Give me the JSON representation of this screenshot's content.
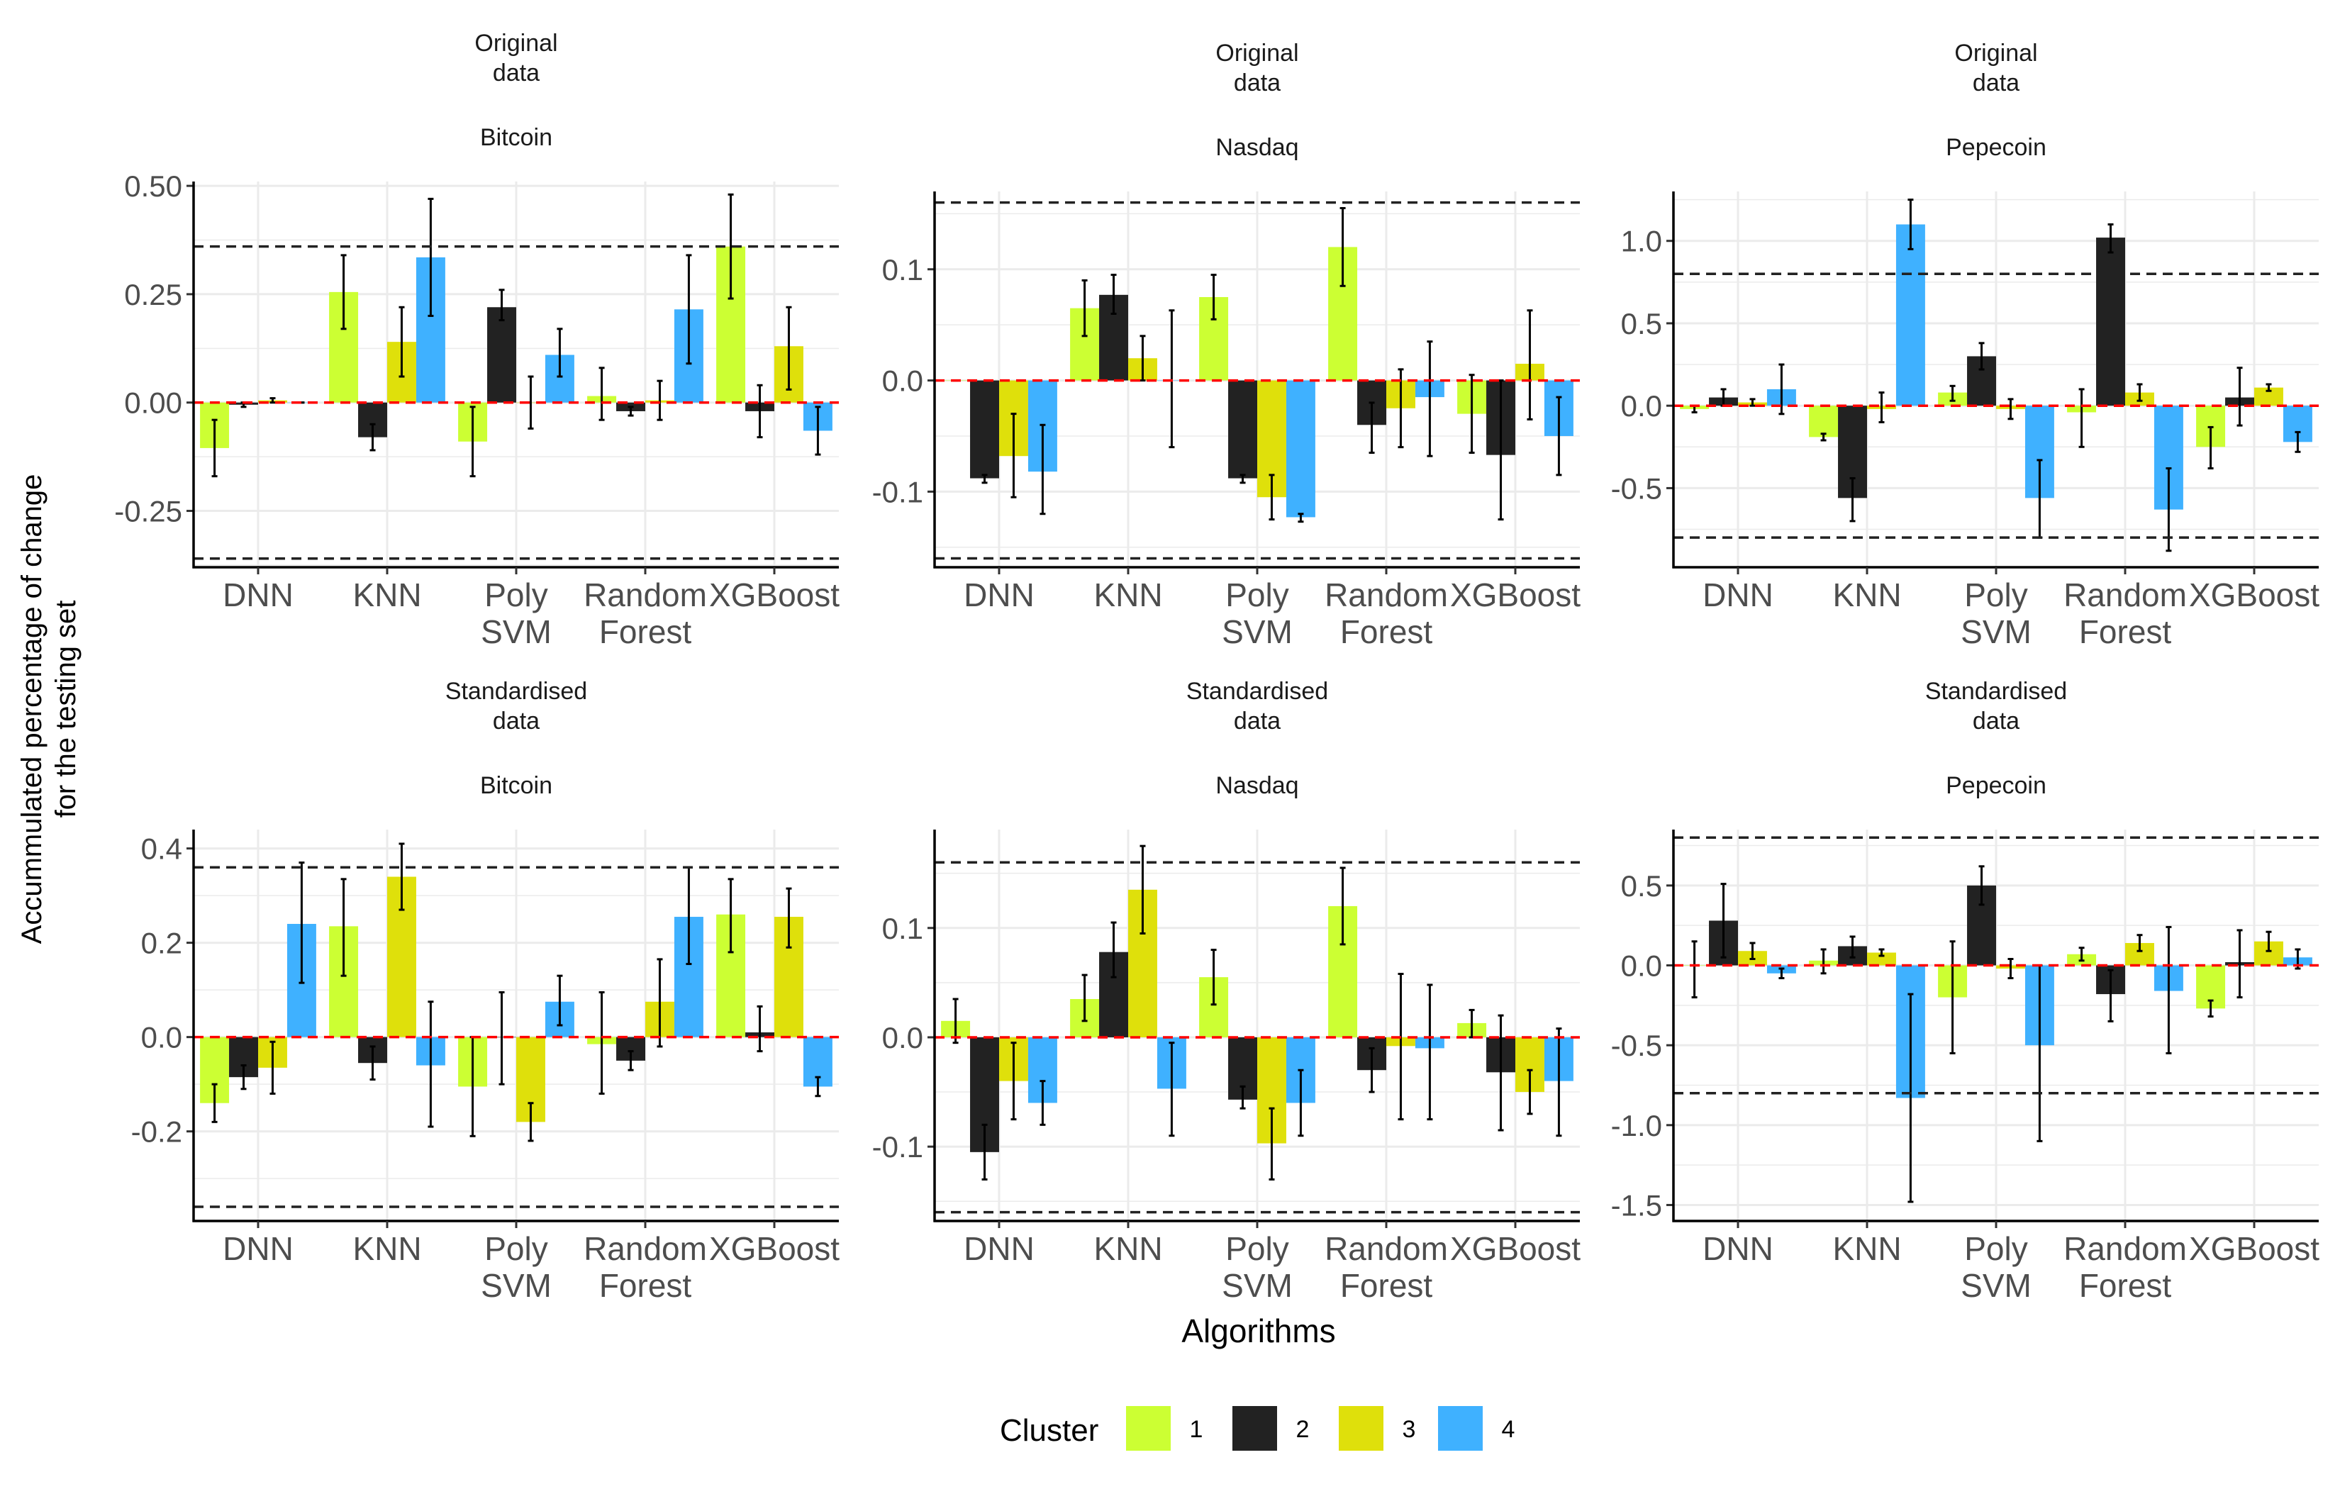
{
  "figure": {
    "ylabel_line1": "Accummulated percentage of change",
    "ylabel_line2": "for the testing set",
    "xlabel": "Algorithms",
    "legend_title": "Cluster"
  },
  "colors": {
    "cluster_1": "#CCFF33",
    "cluster_2": "#222222",
    "cluster_3": "#DFE00B",
    "cluster_4": "#3FB1FF",
    "zero_line": "#FF0000",
    "threshold_line": "#222222",
    "grid": "#EBEBEB"
  },
  "legend": [
    {
      "label": "1",
      "color": "#CCFF33"
    },
    {
      "label": "2",
      "color": "#222222"
    },
    {
      "label": "3",
      "color": "#DFE00B"
    },
    {
      "label": "4",
      "color": "#3FB1FF"
    }
  ],
  "chart_data": [
    {
      "type": "bar",
      "title_line1": "Original",
      "title_line2": "data",
      "subtitle": "Bitcoin",
      "categories": [
        [
          "DNN"
        ],
        [
          "KNN"
        ],
        [
          "Poly",
          "SVM"
        ],
        [
          "Random",
          "Forest"
        ],
        [
          "XGBoost"
        ]
      ],
      "ylim": [
        -0.38,
        0.51
      ],
      "yticks": [
        0.5,
        0.25,
        0.0,
        -0.25
      ],
      "ytick_labels": [
        "0.50",
        "0.25",
        "0.00",
        "-0.25"
      ],
      "thresholds": [
        0.36,
        -0.36
      ],
      "series": [
        {
          "name": "1",
          "values": [
            -0.105,
            0.255,
            -0.09,
            0.015,
            0.36
          ],
          "err": [
            [
              -0.17,
              -0.04
            ],
            [
              0.17,
              0.34
            ],
            [
              -0.17,
              -0.01
            ],
            [
              -0.04,
              0.08
            ],
            [
              0.24,
              0.48
            ]
          ]
        },
        {
          "name": "2",
          "values": [
            -0.005,
            -0.08,
            0.22,
            -0.02,
            -0.02
          ],
          "err": [
            [
              -0.01,
              0.0
            ],
            [
              -0.11,
              -0.05
            ],
            [
              0.19,
              0.26
            ],
            [
              -0.03,
              -0.01
            ],
            [
              -0.08,
              0.04
            ]
          ]
        },
        {
          "name": "3",
          "values": [
            0.005,
            0.14,
            0.0,
            0.005,
            0.13
          ],
          "err": [
            [
              0.0,
              0.01
            ],
            [
              0.06,
              0.22
            ],
            [
              -0.06,
              0.06
            ],
            [
              -0.04,
              0.05
            ],
            [
              0.03,
              0.22
            ]
          ]
        },
        {
          "name": "4",
          "values": [
            0.0,
            0.335,
            0.11,
            0.215,
            -0.065
          ],
          "err": [
            [
              0.0,
              0.0
            ],
            [
              0.2,
              0.47
            ],
            [
              0.06,
              0.17
            ],
            [
              0.09,
              0.34
            ],
            [
              -0.12,
              -0.01
            ]
          ]
        }
      ]
    },
    {
      "type": "bar",
      "title_line1": "Original",
      "title_line2": "data",
      "subtitle": "Nasdaq",
      "categories": [
        [
          "DNN"
        ],
        [
          "KNN"
        ],
        [
          "Poly",
          "SVM"
        ],
        [
          "Random",
          "Forest"
        ],
        [
          "XGBoost"
        ]
      ],
      "ylim": [
        -0.168,
        0.17
      ],
      "yticks": [
        0.1,
        0.0,
        -0.1
      ],
      "ytick_labels": [
        "0.1",
        "0.0",
        "-0.1"
      ],
      "thresholds": [
        0.16,
        -0.16
      ],
      "series": [
        {
          "name": "1",
          "values": [
            0.0,
            0.065,
            0.075,
            0.12,
            -0.03
          ],
          "err": [
            [
              0.0,
              0.0
            ],
            [
              0.04,
              0.09
            ],
            [
              0.055,
              0.095
            ],
            [
              0.085,
              0.155
            ],
            [
              -0.065,
              0.005
            ]
          ]
        },
        {
          "name": "2",
          "values": [
            -0.088,
            0.077,
            -0.088,
            -0.04,
            -0.067
          ],
          "err": [
            [
              -0.092,
              -0.085
            ],
            [
              0.06,
              0.095
            ],
            [
              -0.092,
              -0.085
            ],
            [
              -0.065,
              -0.02
            ],
            [
              -0.125,
              0.0
            ]
          ]
        },
        {
          "name": "3",
          "values": [
            -0.068,
            0.02,
            -0.105,
            -0.025,
            0.015
          ],
          "err": [
            [
              -0.105,
              -0.03
            ],
            [
              0.0,
              0.04
            ],
            [
              -0.125,
              -0.085
            ],
            [
              -0.06,
              0.01
            ],
            [
              -0.035,
              0.063
            ]
          ]
        },
        {
          "name": "4",
          "values": [
            -0.082,
            0.0,
            -0.123,
            -0.015,
            -0.05
          ],
          "err": [
            [
              -0.12,
              -0.04
            ],
            [
              -0.06,
              0.063
            ],
            [
              -0.127,
              -0.12
            ],
            [
              -0.068,
              0.035
            ],
            [
              -0.085,
              -0.015
            ]
          ]
        }
      ]
    },
    {
      "type": "bar",
      "title_line1": "Original",
      "title_line2": "data",
      "subtitle": "Pepecoin",
      "categories": [
        [
          "DNN"
        ],
        [
          "KNN"
        ],
        [
          "Poly",
          "SVM"
        ],
        [
          "Random",
          "Forest"
        ],
        [
          "XGBoost"
        ]
      ],
      "ylim": [
        -0.98,
        1.3
      ],
      "yticks": [
        1.0,
        0.5,
        0.0,
        -0.5
      ],
      "ytick_labels": [
        "1.0",
        "0.5",
        "0.0",
        "-0.5"
      ],
      "thresholds": [
        0.8,
        -0.8
      ],
      "series": [
        {
          "name": "1",
          "values": [
            -0.02,
            -0.19,
            0.08,
            -0.04,
            -0.25
          ],
          "err": [
            [
              -0.04,
              0.0
            ],
            [
              -0.21,
              -0.17
            ],
            [
              0.03,
              0.12
            ],
            [
              -0.25,
              0.1
            ],
            [
              -0.38,
              -0.13
            ]
          ]
        },
        {
          "name": "2",
          "values": [
            0.05,
            -0.56,
            0.3,
            1.02,
            0.05
          ],
          "err": [
            [
              0.0,
              0.1
            ],
            [
              -0.7,
              -0.44
            ],
            [
              0.22,
              0.38
            ],
            [
              0.93,
              1.1
            ],
            [
              -0.12,
              0.23
            ]
          ]
        },
        {
          "name": "3",
          "values": [
            0.02,
            -0.02,
            -0.02,
            0.08,
            0.11
          ],
          "err": [
            [
              0.0,
              0.04
            ],
            [
              -0.1,
              0.08
            ],
            [
              -0.08,
              0.04
            ],
            [
              0.03,
              0.13
            ],
            [
              0.09,
              0.13
            ]
          ]
        },
        {
          "name": "4",
          "values": [
            0.1,
            1.1,
            -0.56,
            -0.63,
            -0.22
          ],
          "err": [
            [
              -0.05,
              0.25
            ],
            [
              0.95,
              1.25
            ],
            [
              -0.8,
              -0.33
            ],
            [
              -0.88,
              -0.38
            ],
            [
              -0.28,
              -0.16
            ]
          ]
        }
      ]
    },
    {
      "type": "bar",
      "title_line1": "Standardised",
      "title_line2": "data",
      "subtitle": "Bitcoin",
      "categories": [
        [
          "DNN"
        ],
        [
          "KNN"
        ],
        [
          "Poly",
          "SVM"
        ],
        [
          "Random",
          "Forest"
        ],
        [
          "XGBoost"
        ]
      ],
      "ylim": [
        -0.39,
        0.44
      ],
      "yticks": [
        0.4,
        0.2,
        0.0,
        -0.2
      ],
      "ytick_labels": [
        "0.4",
        "0.2",
        "0.0",
        "-0.2"
      ],
      "thresholds": [
        0.36,
        -0.36
      ],
      "series": [
        {
          "name": "1",
          "values": [
            -0.14,
            0.235,
            -0.105,
            -0.015,
            0.26
          ],
          "err": [
            [
              -0.18,
              -0.1
            ],
            [
              0.13,
              0.335
            ],
            [
              -0.21,
              0.0
            ],
            [
              -0.12,
              0.095
            ],
            [
              0.18,
              0.335
            ]
          ]
        },
        {
          "name": "2",
          "values": [
            -0.085,
            -0.055,
            0.0,
            -0.05,
            0.01
          ],
          "err": [
            [
              -0.11,
              -0.06
            ],
            [
              -0.09,
              -0.02
            ],
            [
              -0.1,
              0.095
            ],
            [
              -0.07,
              -0.03
            ],
            [
              -0.03,
              0.065
            ]
          ]
        },
        {
          "name": "3",
          "values": [
            -0.065,
            0.34,
            -0.18,
            0.075,
            0.255
          ],
          "err": [
            [
              -0.12,
              -0.01
            ],
            [
              0.27,
              0.41
            ],
            [
              -0.22,
              -0.14
            ],
            [
              -0.02,
              0.165
            ],
            [
              0.19,
              0.315
            ]
          ]
        },
        {
          "name": "4",
          "values": [
            0.24,
            -0.06,
            0.075,
            0.255,
            -0.105
          ],
          "err": [
            [
              0.115,
              0.37
            ],
            [
              -0.19,
              0.075
            ],
            [
              0.025,
              0.13
            ],
            [
              0.155,
              0.36
            ],
            [
              -0.125,
              -0.085
            ]
          ]
        }
      ]
    },
    {
      "type": "bar",
      "title_line1": "Standardised",
      "title_line2": "data",
      "subtitle": "Nasdaq",
      "categories": [
        [
          "DNN"
        ],
        [
          "KNN"
        ],
        [
          "Poly",
          "SVM"
        ],
        [
          "Random",
          "Forest"
        ],
        [
          "XGBoost"
        ]
      ],
      "ylim": [
        -0.168,
        0.19
      ],
      "yticks": [
        0.1,
        0.0,
        -0.1
      ],
      "ytick_labels": [
        "0.1",
        "0.0",
        "-0.1"
      ],
      "thresholds": [
        0.16,
        -0.16
      ],
      "series": [
        {
          "name": "1",
          "values": [
            0.015,
            0.035,
            0.055,
            0.12,
            0.013
          ],
          "err": [
            [
              -0.005,
              0.035
            ],
            [
              0.015,
              0.057
            ],
            [
              0.03,
              0.08
            ],
            [
              0.085,
              0.155
            ],
            [
              0.0,
              0.025
            ]
          ]
        },
        {
          "name": "2",
          "values": [
            -0.105,
            0.078,
            -0.057,
            -0.03,
            -0.032
          ],
          "err": [
            [
              -0.13,
              -0.08
            ],
            [
              0.055,
              0.105
            ],
            [
              -0.065,
              -0.045
            ],
            [
              -0.05,
              -0.01
            ],
            [
              -0.085,
              0.02
            ]
          ]
        },
        {
          "name": "3",
          "values": [
            -0.04,
            0.135,
            -0.097,
            -0.008,
            -0.05
          ],
          "err": [
            [
              -0.075,
              -0.005
            ],
            [
              0.095,
              0.175
            ],
            [
              -0.13,
              -0.065
            ],
            [
              -0.075,
              0.058
            ],
            [
              -0.07,
              -0.03
            ]
          ]
        },
        {
          "name": "4",
          "values": [
            -0.06,
            -0.047,
            -0.06,
            -0.01,
            -0.04
          ],
          "err": [
            [
              -0.08,
              -0.04
            ],
            [
              -0.09,
              -0.005
            ],
            [
              -0.09,
              -0.03
            ],
            [
              -0.075,
              0.048
            ],
            [
              -0.09,
              0.008
            ]
          ]
        }
      ]
    },
    {
      "type": "bar",
      "title_line1": "Standardised",
      "title_line2": "data",
      "subtitle": "Pepecoin",
      "categories": [
        [
          "DNN"
        ],
        [
          "KNN"
        ],
        [
          "Poly",
          "SVM"
        ],
        [
          "Random",
          "Forest"
        ],
        [
          "XGBoost"
        ]
      ],
      "ylim": [
        -1.6,
        0.85
      ],
      "yticks": [
        0.5,
        0.0,
        -0.5,
        -1.0,
        -1.5
      ],
      "ytick_labels": [
        "0.5",
        "0.0",
        "-0.5",
        "-1.0",
        "-1.5"
      ],
      "thresholds": [
        0.8,
        -0.8
      ],
      "series": [
        {
          "name": "1",
          "values": [
            0.0,
            0.03,
            -0.2,
            0.07,
            -0.27
          ],
          "err": [
            [
              -0.2,
              0.15
            ],
            [
              -0.05,
              0.1
            ],
            [
              -0.55,
              0.15
            ],
            [
              0.03,
              0.11
            ],
            [
              -0.32,
              -0.22
            ]
          ]
        },
        {
          "name": "2",
          "values": [
            0.28,
            0.12,
            0.5,
            -0.18,
            0.02
          ],
          "err": [
            [
              0.05,
              0.51
            ],
            [
              0.05,
              0.18
            ],
            [
              0.38,
              0.62
            ],
            [
              -0.35,
              -0.03
            ],
            [
              -0.2,
              0.22
            ]
          ]
        },
        {
          "name": "3",
          "values": [
            0.09,
            0.08,
            -0.02,
            0.14,
            0.15
          ],
          "err": [
            [
              0.04,
              0.14
            ],
            [
              0.06,
              0.1
            ],
            [
              -0.08,
              0.04
            ],
            [
              0.09,
              0.19
            ],
            [
              0.09,
              0.21
            ]
          ]
        },
        {
          "name": "4",
          "values": [
            -0.05,
            -0.83,
            -0.5,
            -0.16,
            0.05
          ],
          "err": [
            [
              -0.08,
              -0.02
            ],
            [
              -1.48,
              -0.18
            ],
            [
              -1.1,
              0.0
            ],
            [
              -0.55,
              0.24
            ],
            [
              -0.02,
              0.1
            ]
          ]
        }
      ]
    }
  ]
}
